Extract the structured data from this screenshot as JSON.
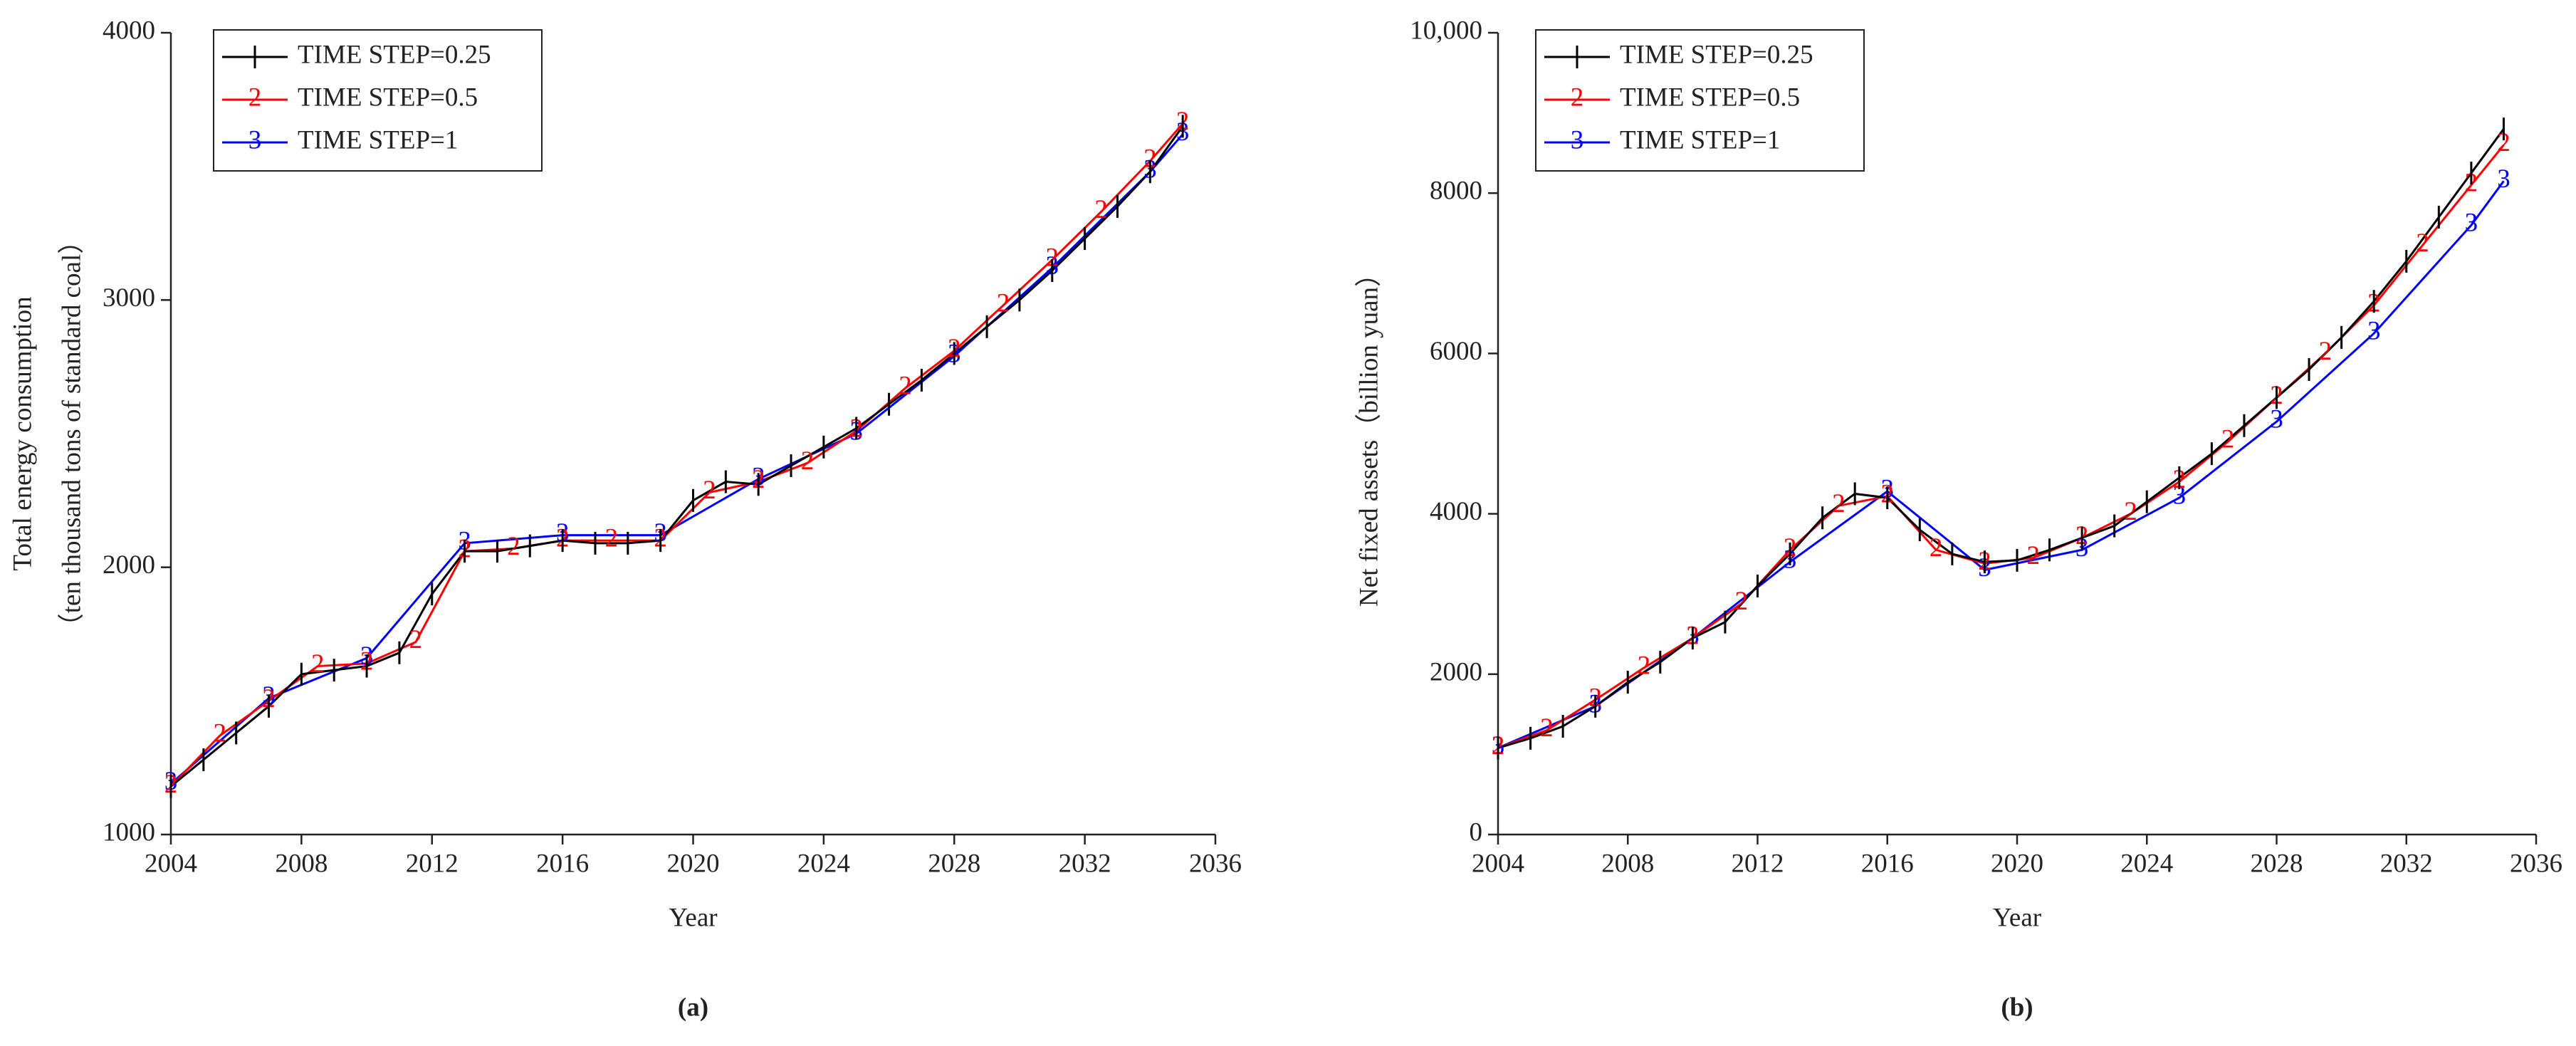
{
  "chart_data": [
    {
      "type": "line",
      "panel_label": "(a)",
      "xlabel": "Year",
      "ylabel": [
        "Total energy consumption",
        "（ten thousand tons of standard coal）"
      ],
      "xlim": [
        2004,
        2036
      ],
      "xticks": [
        2004,
        2008,
        2012,
        2016,
        2020,
        2024,
        2028,
        2032,
        2036
      ],
      "ylim": [
        1000,
        4000
      ],
      "yticks": [
        1000,
        2000,
        3000,
        4000
      ],
      "legend": "upper left",
      "series": [
        {
          "name": "TIME STEP=0.25",
          "color": "#000000",
          "x": [
            2004,
            2005,
            2006,
            2007,
            2008,
            2009,
            2010,
            2011,
            2012,
            2013,
            2014,
            2015,
            2016,
            2017,
            2018,
            2019,
            2020,
            2021,
            2022,
            2023,
            2024,
            2025,
            2026,
            2027,
            2028,
            2029,
            2030,
            2031,
            2032,
            2033,
            2034,
            2035
          ],
          "values": [
            1180,
            1280,
            1380,
            1480,
            1600,
            1615,
            1630,
            1680,
            1900,
            2060,
            2060,
            2080,
            2100,
            2090,
            2090,
            2100,
            2250,
            2320,
            2310,
            2380,
            2450,
            2520,
            2610,
            2700,
            2800,
            2900,
            3000,
            3110,
            3230,
            3350,
            3480,
            3650
          ]
        },
        {
          "name": "TIME STEP=0.5",
          "color": "#ff0000",
          "marker": "2",
          "x": [
            2004,
            2005.5,
            2007,
            2008.5,
            2010,
            2011.5,
            2013,
            2014.5,
            2016,
            2017.5,
            2019,
            2020.5,
            2022,
            2023.5,
            2025,
            2026.5,
            2028,
            2029.5,
            2031,
            2032.5,
            2034,
            2035
          ],
          "values": [
            1180,
            1370,
            1500,
            1630,
            1640,
            1720,
            2060,
            2070,
            2100,
            2100,
            2100,
            2280,
            2320,
            2390,
            2510,
            2670,
            2810,
            2980,
            3150,
            3330,
            3520,
            3660
          ]
        },
        {
          "name": "TIME STEP=1",
          "color": "#0000ff",
          "marker": "3",
          "x": [
            2004,
            2007,
            2010,
            2013,
            2016,
            2019,
            2022,
            2025,
            2028,
            2031,
            2034,
            2035
          ],
          "values": [
            1190,
            1510,
            1660,
            2090,
            2120,
            2120,
            2330,
            2500,
            2790,
            3120,
            3480,
            3620
          ]
        }
      ]
    },
    {
      "type": "line",
      "panel_label": "(b)",
      "xlabel": "Year",
      "ylabel": [
        "Net fixed assets（billion yuan）"
      ],
      "xlim": [
        2004,
        2036
      ],
      "xticks": [
        2004,
        2008,
        2012,
        2016,
        2020,
        2024,
        2028,
        2032,
        2036
      ],
      "ylim": [
        0,
        10000
      ],
      "yticks": [
        0,
        2000,
        4000,
        6000,
        8000,
        {
          "value": 10000,
          "label": "10,000"
        }
      ],
      "legend": "upper left",
      "series": [
        {
          "name": "TIME STEP=0.25",
          "color": "#000000",
          "x": [
            2004,
            2005,
            2006,
            2007,
            2008,
            2009,
            2010,
            2011,
            2012,
            2013,
            2014,
            2015,
            2016,
            2017,
            2018,
            2019,
            2020,
            2021,
            2022,
            2023,
            2024,
            2025,
            2026,
            2027,
            2028,
            2029,
            2030,
            2031,
            2032,
            2033,
            2034,
            2035
          ],
          "values": [
            1080,
            1200,
            1350,
            1600,
            1900,
            2150,
            2450,
            2650,
            3100,
            3500,
            3950,
            4250,
            4200,
            3800,
            3500,
            3400,
            3420,
            3550,
            3700,
            3850,
            4150,
            4450,
            4750,
            5100,
            5450,
            5800,
            6200,
            6650,
            7150,
            7700,
            8250,
            8800
          ]
        },
        {
          "name": "TIME STEP=0.5",
          "color": "#ff0000",
          "marker": "2",
          "x": [
            2004,
            2005.5,
            2007,
            2008.5,
            2010,
            2011.5,
            2013,
            2014.5,
            2016,
            2017.5,
            2019,
            2020.5,
            2022,
            2023.5,
            2025,
            2026.5,
            2028,
            2029.5,
            2031,
            2032.5,
            2034,
            2035
          ],
          "values": [
            1080,
            1300,
            1680,
            2080,
            2450,
            2880,
            3550,
            4100,
            4220,
            3550,
            3380,
            3450,
            3700,
            4000,
            4400,
            4900,
            5450,
            6000,
            6600,
            7350,
            8100,
            8600
          ]
        },
        {
          "name": "TIME STEP=1",
          "color": "#0000ff",
          "marker": "3",
          "x": [
            2004,
            2007,
            2010,
            2013,
            2016,
            2019,
            2022,
            2025,
            2028,
            2031,
            2034,
            2035
          ],
          "values": [
            1080,
            1600,
            2450,
            3400,
            4280,
            3300,
            3550,
            4200,
            5150,
            6250,
            7600,
            8150
          ]
        }
      ]
    }
  ]
}
